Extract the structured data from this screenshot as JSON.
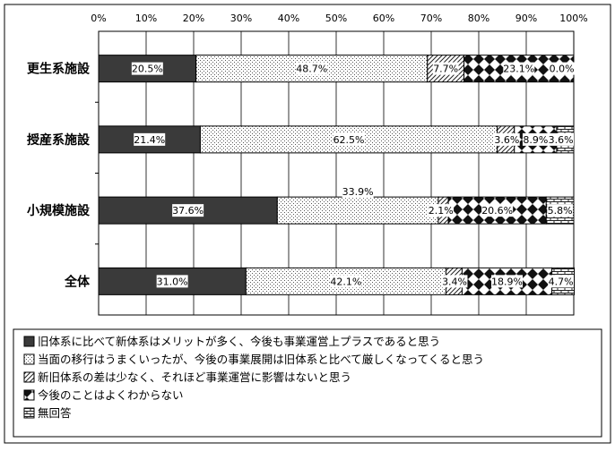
{
  "chart_data": {
    "type": "bar",
    "orientation": "horizontal",
    "stacked": true,
    "percent": true,
    "categories": [
      "更生系施設",
      "授産系施設",
      "小規模施設",
      "全体"
    ],
    "series": [
      {
        "name": "旧体系に比べて新体系はメリットが多く、今後も事業運営上プラスであると思う",
        "values": [
          20.5,
          21.4,
          37.6,
          31.0
        ],
        "pattern": "solid"
      },
      {
        "name": "当面の移行はうまくいったが、今後の事業展開は旧体系と比べて厳しくなってくると思う",
        "values": [
          48.7,
          62.5,
          33.9,
          42.1
        ],
        "pattern": "dots"
      },
      {
        "name": "新旧体系の差は少なく、それほど事業運営に影響はないと思う",
        "values": [
          7.7,
          3.6,
          2.1,
          3.4
        ],
        "pattern": "diagonal"
      },
      {
        "name": "今後のことはよくわからない",
        "values": [
          23.1,
          8.9,
          20.6,
          18.9
        ],
        "pattern": "diamonds"
      },
      {
        "name": "無回答",
        "values": [
          0.0,
          3.6,
          5.8,
          4.7
        ],
        "pattern": "bricks"
      }
    ],
    "value_labels": [
      [
        "20.5%",
        "48.7%",
        "7.7%",
        "23.1%",
        "0.0%"
      ],
      [
        "21.4%",
        "62.5%",
        "3.6%",
        "8.9%",
        "3.6%"
      ],
      [
        "37.6%",
        "33.9%",
        "2.1%",
        "20.6%",
        "5.8%"
      ],
      [
        "31.0%",
        "42.1%",
        "3.4%",
        "18.9%",
        "4.7%"
      ]
    ],
    "x_ticks": [
      "0%",
      "10%",
      "20%",
      "30%",
      "40%",
      "50%",
      "60%",
      "70%",
      "80%",
      "90%",
      "100%"
    ],
    "xlim": [
      0,
      100
    ],
    "grid": true,
    "legend_position": "bottom"
  }
}
